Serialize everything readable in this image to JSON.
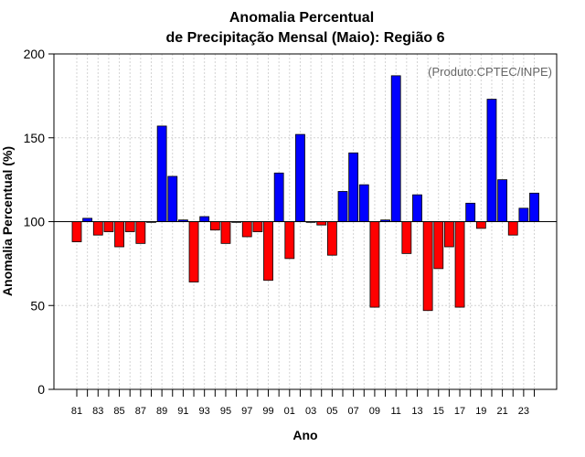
{
  "chart_data": {
    "type": "bar",
    "title": "Anomalia Percentual",
    "subtitle": "de Precipitação Mensal (Maio): Região 6",
    "xlabel": "Ano",
    "ylabel": "Anomalia Percentual (%)",
    "annotation": "(Produto:CPTEC/INPE)",
    "ylim": [
      0,
      200
    ],
    "yticks": [
      0,
      50,
      100,
      150,
      200
    ],
    "baseline": 100,
    "grid": true,
    "colors": {
      "above": "#0000ff",
      "below": "#ff0000",
      "border": "#000000",
      "grid": "#d3d3d3"
    },
    "categories": [
      "81",
      "82",
      "83",
      "84",
      "85",
      "86",
      "87",
      "88",
      "89",
      "90",
      "91",
      "92",
      "93",
      "94",
      "95",
      "96",
      "97",
      "98",
      "99",
      "00",
      "01",
      "02",
      "03",
      "04",
      "05",
      "06",
      "07",
      "08",
      "09",
      "10",
      "11",
      "12",
      "13",
      "14",
      "15",
      "16",
      "17",
      "18",
      "19",
      "20",
      "21",
      "22",
      "23",
      "24"
    ],
    "xtick_labels": [
      "81",
      "83",
      "85",
      "87",
      "89",
      "91",
      "93",
      "95",
      "97",
      "99",
      "01",
      "03",
      "05",
      "07",
      "09",
      "11",
      "13",
      "15",
      "17",
      "19",
      "21",
      "23"
    ],
    "values": [
      88,
      102,
      92,
      94,
      85,
      94,
      87,
      100,
      157,
      127,
      101,
      64,
      103,
      95,
      87,
      100,
      91,
      94,
      65,
      129,
      78,
      152,
      100,
      98,
      80,
      118,
      141,
      122,
      49,
      101,
      187,
      81,
      116,
      47,
      72,
      85,
      49,
      111,
      96,
      173,
      125,
      92,
      108,
      117
    ]
  }
}
